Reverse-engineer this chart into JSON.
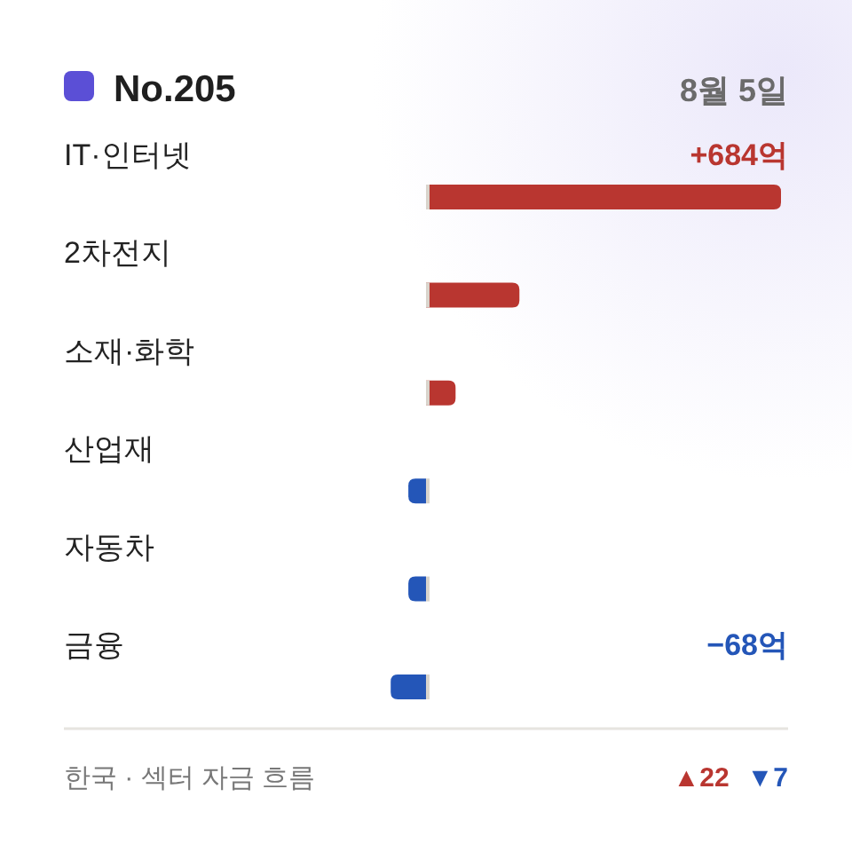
{
  "chart_data": {
    "type": "bar",
    "orientation": "horizontal",
    "title": "No.205",
    "subtitle": "8월 5일",
    "categories": [
      "IT·인터넷",
      "2차전지",
      "소재·화학",
      "산업재",
      "자동차",
      "금융"
    ],
    "values": [
      684,
      180,
      57,
      -34,
      -34,
      -68
    ],
    "colors": [
      "#b93630",
      "#b93630",
      "#b93630",
      "#2456b8",
      "#2456b8",
      "#2456b8"
    ],
    "value_labels": [
      "+684억",
      null,
      null,
      null,
      null,
      "−68억"
    ],
    "annotations": [
      "한국 · 섹터 자금 흐름",
      "▲22",
      "▼7"
    ]
  }
}
